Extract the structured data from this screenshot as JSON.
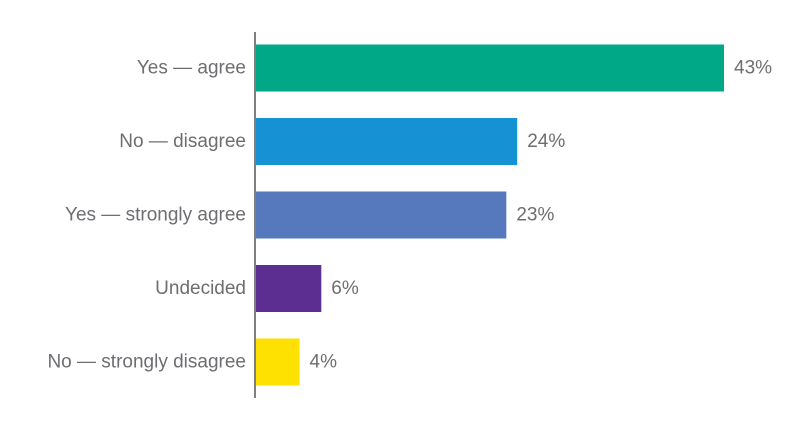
{
  "chart_data": {
    "type": "bar",
    "orientation": "horizontal",
    "categories": [
      "Yes — agree",
      "No — disagree",
      "Yes — strongly agree",
      "Undecided",
      "No — strongly disagree"
    ],
    "values": [
      43,
      24,
      23,
      6,
      4
    ],
    "data_labels": [
      "43%",
      "24%",
      "23%",
      "6%",
      "4%"
    ],
    "colors": [
      "#00a887",
      "#1591d4",
      "#5679be",
      "#5d2e91",
      "#fee100"
    ],
    "value_unit": "%",
    "xlim": [
      0,
      43
    ],
    "grid": false,
    "legend": "none",
    "title": "",
    "xlabel": "",
    "ylabel": ""
  }
}
